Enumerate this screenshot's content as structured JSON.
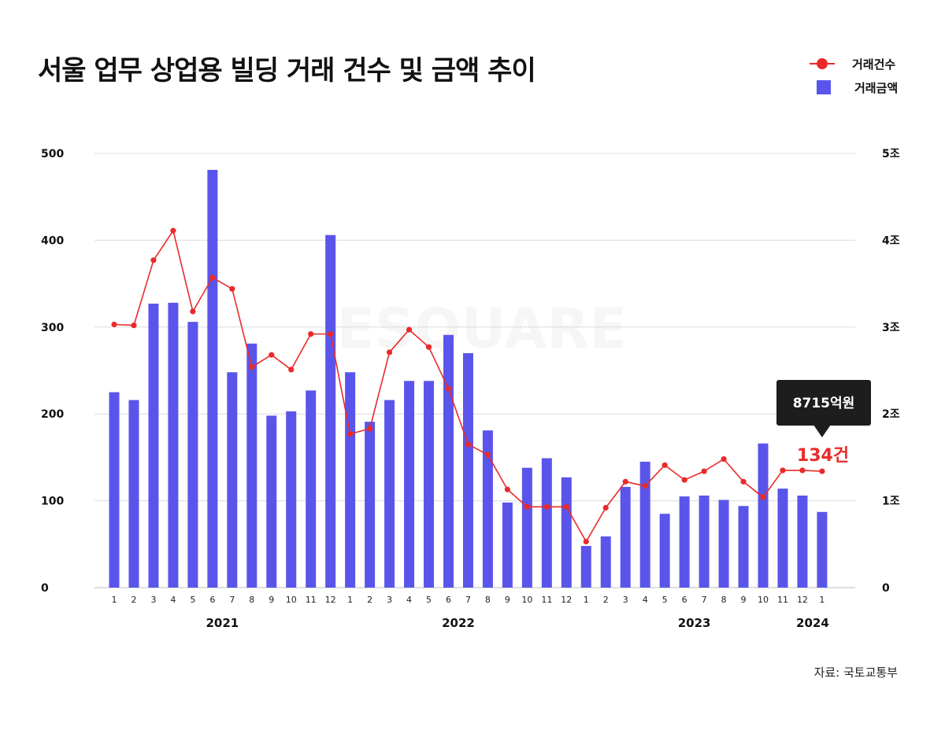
{
  "chart_data": {
    "type": "bar+line",
    "title": "서울 업무 상업용 빌딩 거래 건수 및 금액 추이",
    "source": "자료: 국토교통부",
    "watermark": "ESQUARE",
    "legend": {
      "count_label": "거래건수",
      "amount_label": "거래금액",
      "position": "top-right"
    },
    "left_axis": {
      "ylim": [
        0,
        500
      ],
      "ticks": [
        "0",
        "100",
        "200",
        "300",
        "400",
        "500"
      ]
    },
    "right_axis": {
      "ylim": [
        0,
        5
      ],
      "unit": "조",
      "ticks": [
        "0",
        "1조",
        "2조",
        "3조",
        "4조",
        "5조"
      ]
    },
    "grid": true,
    "categories": [
      "1",
      "2",
      "3",
      "4",
      "5",
      "6",
      "7",
      "8",
      "9",
      "10",
      "11",
      "12",
      "1",
      "2",
      "3",
      "4",
      "5",
      "6",
      "7",
      "8",
      "9",
      "10",
      "11",
      "12",
      "1",
      "2",
      "3",
      "4",
      "5",
      "6",
      "7",
      "8",
      "9",
      "10",
      "11",
      "12",
      "1"
    ],
    "year_groups": [
      {
        "label": "2021",
        "start": 0,
        "end": 11
      },
      {
        "label": "2022",
        "start": 12,
        "end": 23
      },
      {
        "label": "2023",
        "start": 24,
        "end": 35
      },
      {
        "label": "2024",
        "start": 36,
        "end": 36
      }
    ],
    "series": [
      {
        "name": "거래금액",
        "kind": "bar",
        "axis": "right",
        "color": "#5a55ea",
        "values": [
          2.25,
          2.16,
          3.27,
          3.28,
          3.06,
          4.81,
          2.48,
          2.81,
          1.98,
          2.03,
          2.27,
          4.06,
          2.48,
          1.91,
          2.16,
          2.38,
          2.38,
          2.91,
          2.7,
          1.81,
          0.98,
          1.38,
          1.49,
          1.27,
          0.48,
          0.59,
          1.16,
          1.45,
          0.85,
          1.05,
          1.06,
          1.01,
          0.94,
          1.66,
          1.14,
          1.06,
          0.8715
        ]
      },
      {
        "name": "거래건수",
        "kind": "line",
        "axis": "left",
        "color": "#ea2a2a",
        "values": [
          303,
          302,
          377,
          411,
          318,
          357,
          344,
          254,
          268,
          251,
          292,
          292,
          177,
          183,
          271,
          297,
          277,
          229,
          165,
          153,
          113,
          93,
          93,
          93,
          53,
          92,
          122,
          117,
          141,
          124,
          134,
          148,
          122,
          104,
          135,
          135,
          134
        ]
      }
    ],
    "annotations": {
      "amount_callout": "8715억원",
      "count_callout": "134건"
    }
  }
}
